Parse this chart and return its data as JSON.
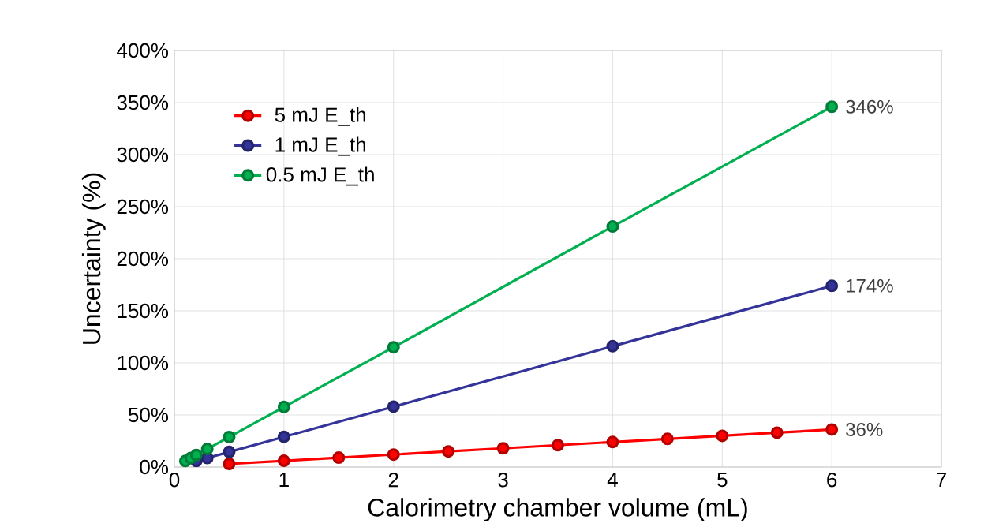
{
  "chart_data": {
    "type": "line",
    "xlabel": "Calorimetry chamber volume (mL)",
    "ylabel": "Uncertainty (%)",
    "xlim": [
      0,
      7
    ],
    "xticks": [
      0,
      1,
      2,
      3,
      4,
      5,
      6,
      7
    ],
    "ylim": [
      0,
      400
    ],
    "yticks": [
      {
        "value": 0,
        "label": "0%"
      },
      {
        "value": 50,
        "label": "50%"
      },
      {
        "value": 100,
        "label": "100%"
      },
      {
        "value": 150,
        "label": "150%"
      },
      {
        "value": 200,
        "label": "200%"
      },
      {
        "value": 250,
        "label": "250%"
      },
      {
        "value": 300,
        "label": "300%"
      },
      {
        "value": 350,
        "label": "350%"
      },
      {
        "value": 400,
        "label": "400%"
      }
    ],
    "grid": true,
    "legend": "top left",
    "marker": "circle",
    "line_style": "solid",
    "series": [
      {
        "name": "5 mJ E_th",
        "color": "#ff0000",
        "x": [
          0.5,
          1,
          1.5,
          2,
          2.5,
          3,
          3.5,
          4,
          4.5,
          5,
          5.5,
          6
        ],
        "values": [
          3,
          6,
          9,
          12,
          15,
          18,
          21,
          24,
          27,
          30,
          33,
          36
        ],
        "value_labels": [
          null,
          null,
          null,
          null,
          null,
          null,
          null,
          null,
          null,
          null,
          null,
          "36%"
        ]
      },
      {
        "name": "1 mJ E_th",
        "color": "#333399",
        "x": [
          0.2,
          0.3,
          0.5,
          1,
          2,
          4,
          6
        ],
        "values": [
          5.8,
          8.7,
          14.5,
          29,
          58,
          116,
          174
        ],
        "value_labels": [
          null,
          null,
          null,
          null,
          null,
          null,
          "174%"
        ]
      },
      {
        "name": "0.5 mJ E_th",
        "color": "#00b050",
        "x": [
          0.1,
          0.15,
          0.2,
          0.3,
          0.5,
          1,
          2,
          4,
          6
        ],
        "values": [
          5.8,
          8.7,
          11.5,
          17.3,
          28.8,
          57.7,
          115,
          231,
          346
        ],
        "value_labels": [
          null,
          null,
          null,
          null,
          null,
          null,
          null,
          null,
          "346%"
        ]
      }
    ]
  }
}
